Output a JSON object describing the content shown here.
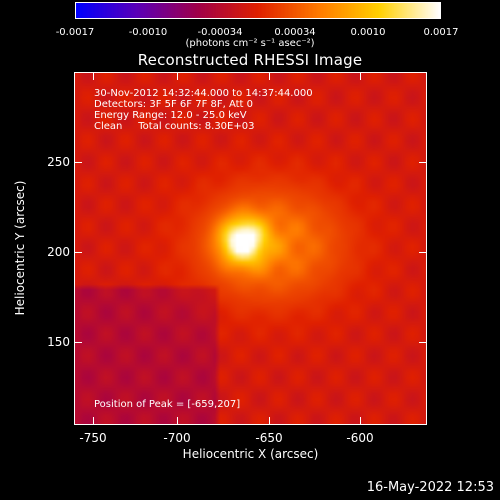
{
  "colorbar": {
    "tick_labels": [
      "-0.0017",
      "-0.0010",
      "-0.00034",
      "0.00034",
      "0.0010",
      "0.0017"
    ],
    "units": "(photons cm⁻² s⁻¹ asec⁻²)"
  },
  "title": "Reconstructed RHESSI Image",
  "info": {
    "time_range": "30-Nov-2012 14:32:44.000 to 14:37:44.000",
    "detectors": "Detectors: 3F 5F 6F 7F 8F, Att 0",
    "energy": "Energy Range: 12.0 - 25.0 keV",
    "clean": "Clean     Total counts: 8.30E+03",
    "peak": "Position of Peak = [-659,207]"
  },
  "axes": {
    "xlabel": "Heliocentric X (arcsec)",
    "ylabel": "Heliocentric Y (arcsec)",
    "x_ticks": [
      "-750",
      "-700",
      "-650",
      "-600"
    ],
    "y_ticks": [
      "250",
      "200",
      "150"
    ]
  },
  "footer_timestamp": "16-May-2022 12:53",
  "colors": {
    "background": "#000000",
    "colormap": [
      "#0000ff",
      "#5b00b8",
      "#a0004a",
      "#e02000",
      "#ff7a00",
      "#ffd000",
      "#ffffff"
    ]
  }
}
